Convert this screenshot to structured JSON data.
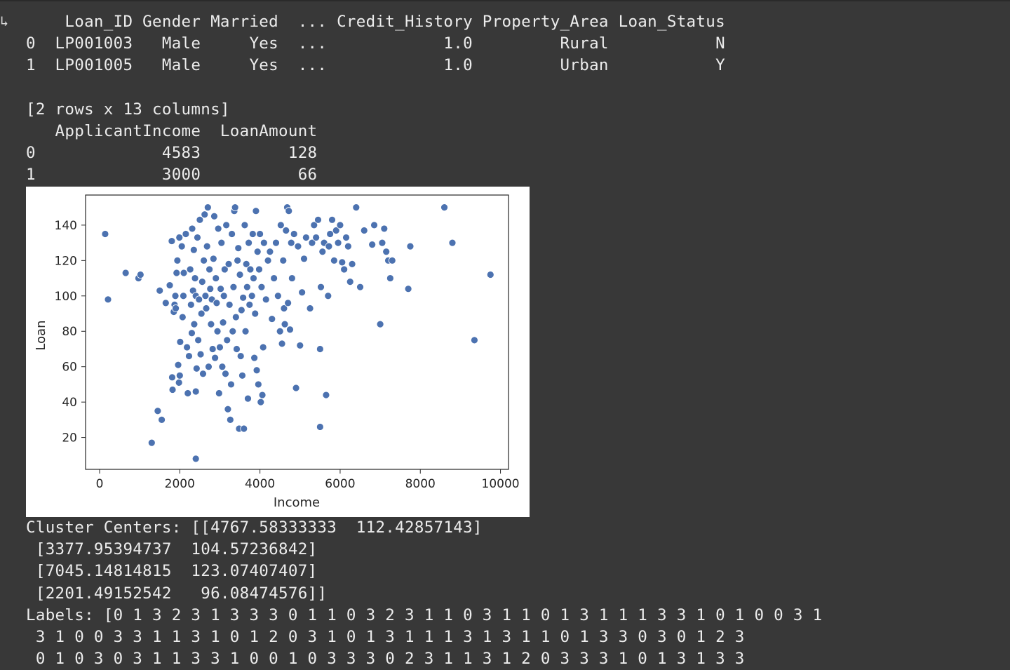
{
  "output": {
    "run_arrow": "↳",
    "table_lines": [
      "    Loan_ID Gender Married  ... Credit_History Property_Area Loan_Status",
      "0  LP001003   Male     Yes  ...            1.0         Rural           N",
      "1  LP001005   Male     Yes  ...            1.0         Urban           Y",
      "",
      "[2 rows x 13 columns]",
      "   ApplicantIncome  LoanAmount",
      "0             4583         128",
      "1             3000          66"
    ],
    "cluster_lines": [
      "Cluster Centers: [[4767.58333333  112.42857143]",
      " [3377.95394737  104.57236842]",
      " [7045.14814815  123.07407407]",
      " [2201.49152542   96.08474576]]",
      "Labels: [0 1 3 2 3 1 3 3 3 0 1 1 0 3 2 3 1 1 0 3 1 1 0 1 3 1 1 1 3 3 1 0 1 0 0 3 1",
      " 3 1 0 0 3 3 1 1 3 1 0 1 2 0 3 1 0 1 3 1 1 1 3 1 3 1 1 0 1 3 3 0 3 0 1 2 3",
      " 0 1 0 3 0 3 1 1 3 3 1 0 0 1 0 3 3 3 0 2 3 1 1 3 1 2 0 3 3 3 1 0 1 3 1 3 3"
    ]
  },
  "chart_data": {
    "type": "scatter",
    "title": "",
    "xlabel": "Income",
    "ylabel": "Loan",
    "xlim": [
      -350,
      10200
    ],
    "ylim": [
      2,
      157
    ],
    "xticks": [
      0,
      2000,
      4000,
      6000,
      8000,
      10000
    ],
    "yticks": [
      20,
      40,
      60,
      80,
      100,
      120,
      140
    ],
    "grid": false,
    "point_color": "#4c72b0",
    "points": [
      [
        139,
        135
      ],
      [
        210,
        98
      ],
      [
        650,
        113
      ],
      [
        970,
        110
      ],
      [
        1020,
        112
      ],
      [
        1300,
        17
      ],
      [
        1450,
        35
      ],
      [
        1500,
        103
      ],
      [
        1550,
        30
      ],
      [
        1650,
        96
      ],
      [
        1750,
        106
      ],
      [
        1800,
        131
      ],
      [
        1810,
        54
      ],
      [
        1820,
        47
      ],
      [
        1850,
        91
      ],
      [
        1870,
        95
      ],
      [
        1890,
        100
      ],
      [
        1900,
        93
      ],
      [
        1920,
        113
      ],
      [
        1940,
        120
      ],
      [
        1960,
        61
      ],
      [
        1980,
        51
      ],
      [
        1990,
        133
      ],
      [
        2000,
        55
      ],
      [
        2010,
        74
      ],
      [
        2050,
        128
      ],
      [
        2070,
        88
      ],
      [
        2090,
        100
      ],
      [
        2100,
        113
      ],
      [
        2150,
        135
      ],
      [
        2180,
        71
      ],
      [
        2200,
        45
      ],
      [
        2230,
        66
      ],
      [
        2260,
        115
      ],
      [
        2280,
        95
      ],
      [
        2300,
        79
      ],
      [
        2310,
        138
      ],
      [
        2330,
        103
      ],
      [
        2350,
        126
      ],
      [
        2360,
        84
      ],
      [
        2380,
        110
      ],
      [
        2400,
        100
      ],
      [
        2400,
        8
      ],
      [
        2400,
        46
      ],
      [
        2420,
        59
      ],
      [
        2440,
        133
      ],
      [
        2460,
        75
      ],
      [
        2480,
        98
      ],
      [
        2500,
        143
      ],
      [
        2520,
        67
      ],
      [
        2540,
        90
      ],
      [
        2560,
        108
      ],
      [
        2580,
        56
      ],
      [
        2600,
        120
      ],
      [
        2620,
        146
      ],
      [
        2640,
        100
      ],
      [
        2660,
        93
      ],
      [
        2680,
        128
      ],
      [
        2700,
        150
      ],
      [
        2720,
        60
      ],
      [
        2740,
        115
      ],
      [
        2760,
        104
      ],
      [
        2780,
        84
      ],
      [
        2800,
        98
      ],
      [
        2820,
        70
      ],
      [
        2840,
        121
      ],
      [
        2860,
        145
      ],
      [
        2880,
        65
      ],
      [
        2900,
        110
      ],
      [
        2920,
        96
      ],
      [
        2940,
        80
      ],
      [
        2960,
        138
      ],
      [
        2980,
        45
      ],
      [
        3000,
        71
      ],
      [
        3020,
        104
      ],
      [
        3040,
        130
      ],
      [
        3060,
        60
      ],
      [
        3080,
        85
      ],
      [
        3100,
        100
      ],
      [
        3120,
        115
      ],
      [
        3140,
        56
      ],
      [
        3160,
        140
      ],
      [
        3180,
        75
      ],
      [
        3200,
        36
      ],
      [
        3220,
        118
      ],
      [
        3240,
        95
      ],
      [
        3260,
        30
      ],
      [
        3280,
        50
      ],
      [
        3300,
        135
      ],
      [
        3320,
        80
      ],
      [
        3340,
        105
      ],
      [
        3360,
        148
      ],
      [
        3380,
        150
      ],
      [
        3400,
        88
      ],
      [
        3420,
        70
      ],
      [
        3440,
        120
      ],
      [
        3460,
        127
      ],
      [
        3480,
        25
      ],
      [
        3500,
        112
      ],
      [
        3520,
        66
      ],
      [
        3540,
        92
      ],
      [
        3560,
        55
      ],
      [
        3580,
        99
      ],
      [
        3600,
        25
      ],
      [
        3620,
        140
      ],
      [
        3640,
        80
      ],
      [
        3660,
        118
      ],
      [
        3680,
        105
      ],
      [
        3700,
        42
      ],
      [
        3720,
        130
      ],
      [
        3740,
        95
      ],
      [
        3760,
        115
      ],
      [
        3800,
        100
      ],
      [
        3820,
        135
      ],
      [
        3840,
        110
      ],
      [
        3860,
        65
      ],
      [
        3880,
        90
      ],
      [
        3900,
        148
      ],
      [
        3920,
        58
      ],
      [
        3940,
        125
      ],
      [
        3960,
        50
      ],
      [
        3980,
        115
      ],
      [
        4000,
        135
      ],
      [
        4020,
        40
      ],
      [
        4040,
        105
      ],
      [
        4060,
        44
      ],
      [
        4080,
        71
      ],
      [
        4100,
        130
      ],
      [
        4150,
        98
      ],
      [
        4200,
        120
      ],
      [
        4250,
        125
      ],
      [
        4300,
        87
      ],
      [
        4350,
        110
      ],
      [
        4400,
        130
      ],
      [
        4450,
        100
      ],
      [
        4500,
        80
      ],
      [
        4520,
        140
      ],
      [
        4550,
        73
      ],
      [
        4580,
        120
      ],
      [
        4600,
        93
      ],
      [
        4620,
        84
      ],
      [
        4650,
        137
      ],
      [
        4680,
        150
      ],
      [
        4700,
        96
      ],
      [
        4720,
        148
      ],
      [
        4750,
        81
      ],
      [
        4780,
        130
      ],
      [
        4800,
        110
      ],
      [
        4850,
        135
      ],
      [
        4900,
        48
      ],
      [
        4950,
        128
      ],
      [
        5000,
        72
      ],
      [
        5050,
        102
      ],
      [
        5100,
        121
      ],
      [
        5150,
        133
      ],
      [
        5250,
        93
      ],
      [
        5300,
        130
      ],
      [
        5350,
        140
      ],
      [
        5400,
        133
      ],
      [
        5450,
        143
      ],
      [
        5500,
        26
      ],
      [
        5500,
        70
      ],
      [
        5520,
        105
      ],
      [
        5560,
        125
      ],
      [
        5600,
        130
      ],
      [
        5650,
        44
      ],
      [
        5700,
        100
      ],
      [
        5720,
        128
      ],
      [
        5750,
        135
      ],
      [
        5800,
        143
      ],
      [
        5850,
        120
      ],
      [
        5900,
        137
      ],
      [
        5950,
        130
      ],
      [
        6000,
        140
      ],
      [
        6050,
        119
      ],
      [
        6100,
        115
      ],
      [
        6150,
        133
      ],
      [
        6200,
        128
      ],
      [
        6250,
        108
      ],
      [
        6300,
        118
      ],
      [
        6400,
        150
      ],
      [
        6500,
        105
      ],
      [
        6600,
        137
      ],
      [
        6800,
        129
      ],
      [
        6850,
        140
      ],
      [
        7000,
        84
      ],
      [
        7050,
        130
      ],
      [
        7100,
        138
      ],
      [
        7150,
        125
      ],
      [
        7200,
        120
      ],
      [
        7250,
        110
      ],
      [
        7300,
        120
      ],
      [
        7700,
        104
      ],
      [
        7750,
        128
      ],
      [
        8600,
        150
      ],
      [
        8800,
        130
      ],
      [
        9350,
        75
      ],
      [
        9750,
        112
      ]
    ]
  }
}
